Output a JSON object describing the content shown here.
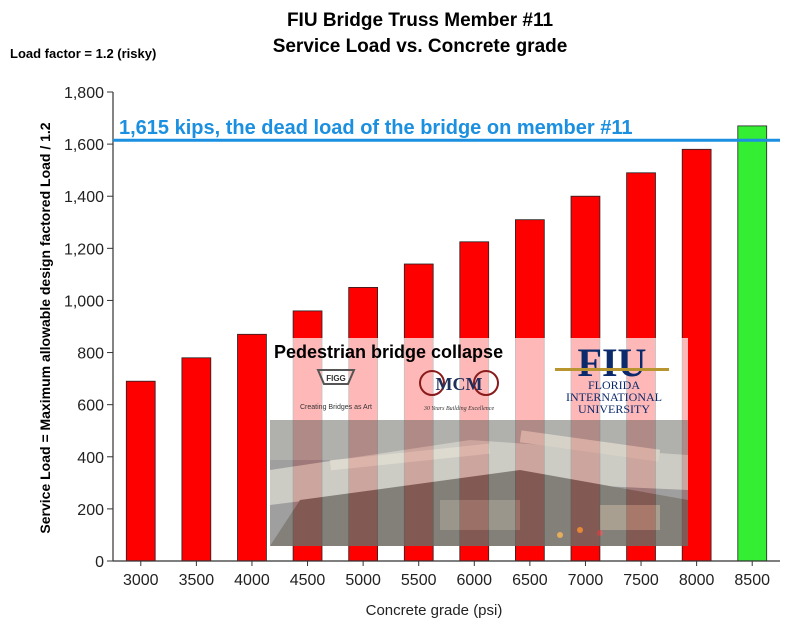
{
  "left_note": "Load factor = 1.2 (risky)",
  "chart_data": {
    "type": "bar",
    "title": "FIU Bridge Truss Member #11",
    "subtitle": "Service Load vs. Concrete grade",
    "xlabel": "Concrete grade (psi)",
    "ylabel": "Service Load = Maximum allowable design factored Load / 1.2",
    "categories": [
      "3000",
      "3500",
      "4000",
      "4500",
      "5000",
      "5500",
      "6000",
      "6500",
      "7000",
      "7500",
      "8000",
      "8500"
    ],
    "values": [
      690,
      780,
      870,
      960,
      1050,
      1140,
      1225,
      1310,
      1400,
      1490,
      1580,
      1670
    ],
    "ylim": [
      0,
      1800
    ],
    "yticks": [
      "0",
      "200",
      "400",
      "600",
      "800",
      "1,000",
      "1,200",
      "1,400",
      "1,600",
      "1,800"
    ],
    "grid": false,
    "colors": {
      "bar": "#ff0000",
      "highlight_bar": "#33ee33",
      "reference_line": "#1b8fe0"
    },
    "highlight_category": "8500",
    "reference_line": {
      "value": 1615,
      "label": "1,615 kips, the dead load of the bridge on member #11"
    }
  },
  "inset": {
    "caption": "Pedestrian bridge collapse",
    "logos": [
      {
        "name": "FIGG",
        "tagline": "Creating Bridges as Art"
      },
      {
        "name": "MCM",
        "tagline": "30 Years Building Excellence"
      },
      {
        "name": "FIU",
        "tagline_line1": "FLORIDA",
        "tagline_line2": "INTERNATIONAL",
        "tagline_line3": "UNIVERSITY"
      }
    ]
  }
}
